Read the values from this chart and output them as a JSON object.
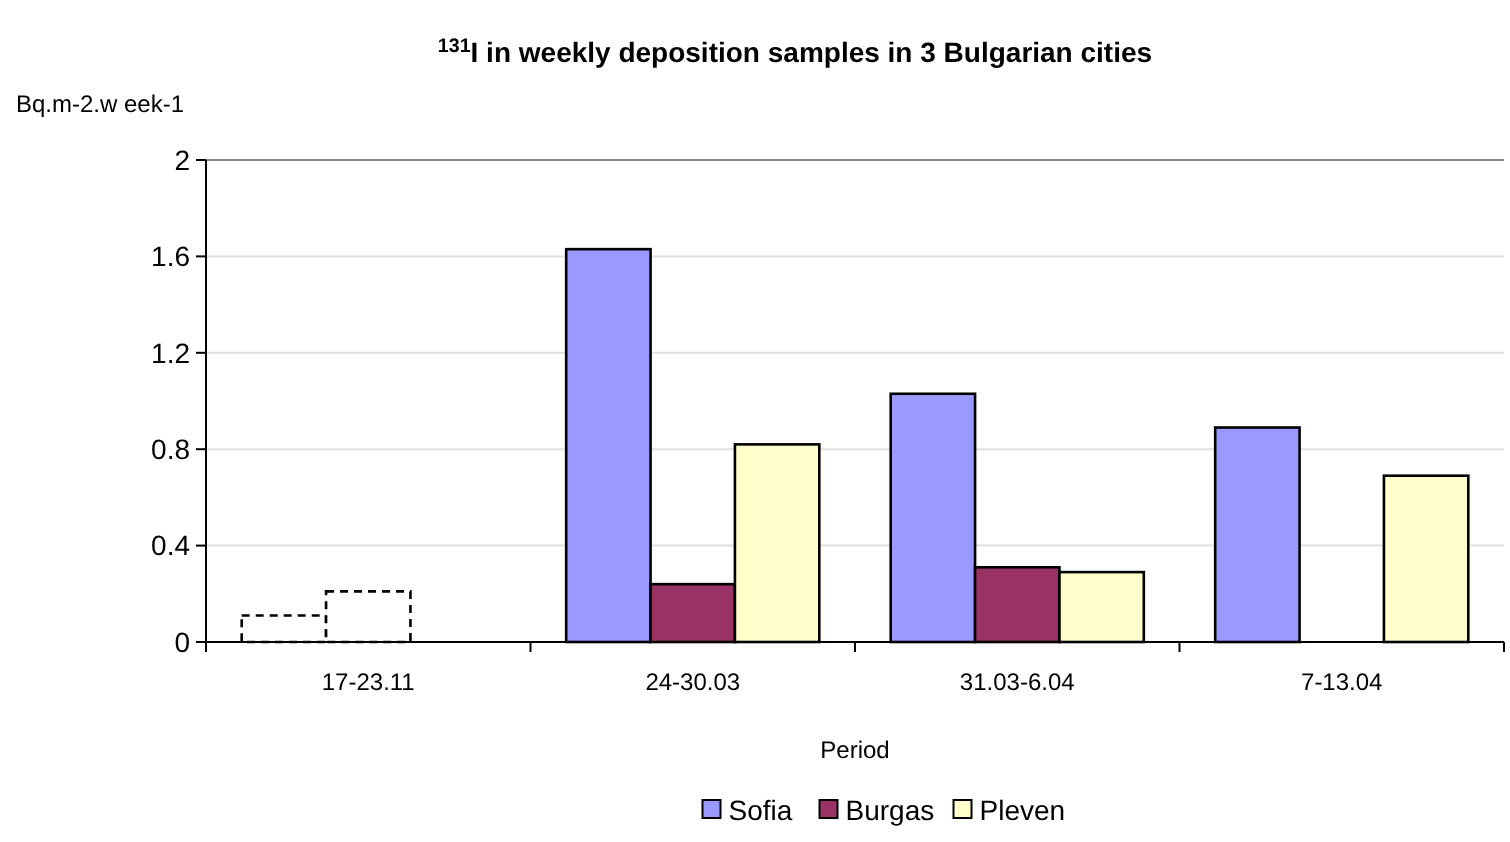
{
  "chart_data": {
    "type": "bar",
    "title": "$^{131}$I in weekly deposition samples in 3 Bulgarian cities",
    "xlabel": "Period",
    "ylabel": "Bq.m-2.w eek-1",
    "categories": [
      "17-23.11",
      "24-30.03",
      "31.03-6.04",
      "7-13.04"
    ],
    "series": [
      {
        "name": "Sofia",
        "color": "#9999ff",
        "colors": [
          "#ffffff",
          "#9999ff",
          "#9999ff",
          "#9999ff"
        ],
        "values": [
          0.11,
          1.63,
          1.03,
          0.89
        ]
      },
      {
        "name": "Burgas",
        "color": "#993366",
        "colors": [
          "#ffffff",
          "#993366",
          "#993366",
          null
        ],
        "values": [
          0.21,
          0.24,
          0.31,
          null
        ]
      },
      {
        "name": "Pleven",
        "color": "#ffffcc",
        "values": [
          null,
          0.82,
          0.29,
          0.69
        ]
      }
    ],
    "ylim": [
      0,
      2
    ],
    "yticks": [
      0,
      0.4,
      0.8,
      1.2,
      1.6,
      2
    ],
    "grid": "y",
    "legend": "bottom"
  }
}
